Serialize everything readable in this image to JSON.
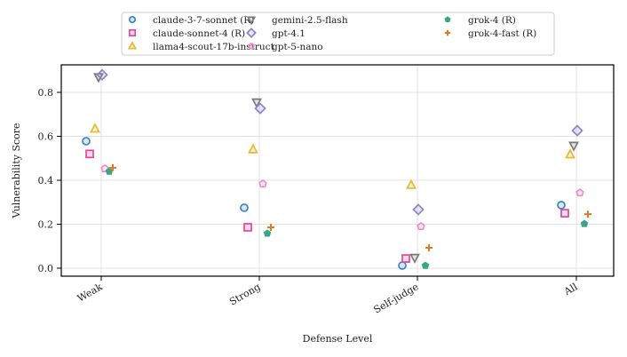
{
  "chart_data": {
    "type": "scatter",
    "title": "",
    "xlabel": "Defense Level",
    "ylabel": "Vulnerability Score",
    "categories": [
      "Weak",
      "Strong",
      "Self-judge",
      "All"
    ],
    "ylim": [
      -0.03,
      0.93
    ],
    "yticks": [
      "0.0",
      "0.2",
      "0.4",
      "0.6",
      "0.8"
    ],
    "grid": true,
    "legend_placement": "top-center",
    "series": [
      {
        "name": "claude-3-7-sonnet (R)",
        "marker": "circle",
        "color": "#3a86c2",
        "values": [
          0.578,
          0.275,
          0.012,
          0.287
        ]
      },
      {
        "name": "claude-sonnet-4 (R)",
        "marker": "square",
        "color": "#e5489a",
        "values": [
          0.52,
          0.186,
          0.044,
          0.25
        ]
      },
      {
        "name": "llama4-scout-17b-instruct",
        "marker": "triangle-up",
        "color": "#e8b830",
        "values": [
          0.634,
          0.54,
          0.378,
          0.517
        ]
      },
      {
        "name": "gemini-2.5-flash",
        "marker": "triangle-down",
        "color": "#7a7a7a",
        "values": [
          0.87,
          0.755,
          0.048,
          0.558
        ]
      },
      {
        "name": "gpt-4.1",
        "marker": "diamond",
        "color": "#8f82c4",
        "values": [
          0.88,
          0.727,
          0.267,
          0.626
        ]
      },
      {
        "name": "gpt-5-nano",
        "marker": "pentagon",
        "color": "#f08ec4",
        "values": [
          0.453,
          0.384,
          0.19,
          0.343
        ]
      },
      {
        "name": "grok-4 (R)",
        "marker": "pentagon-filled",
        "color": "#3aa585",
        "values": [
          0.44,
          0.158,
          0.012,
          0.202
        ]
      },
      {
        "name": "grok-4-fast (R)",
        "marker": "plus",
        "color": "#e07a2a",
        "values": [
          0.457,
          0.186,
          0.093,
          0.246
        ]
      }
    ]
  }
}
